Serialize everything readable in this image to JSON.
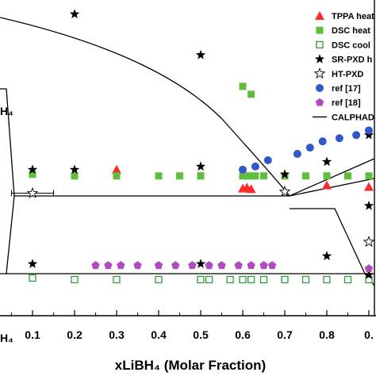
{
  "chart_data": {
    "type": "scatter",
    "title": "",
    "xlabel": "xLiBH₄ (Molar Fraction)",
    "ylabel": "",
    "left_label_fragment": "H₄",
    "bottom_left_fragment": "H₄",
    "x_tick_labels": [
      "0.1",
      "0.2",
      "0.3",
      "0.4",
      "0.5",
      "0.6",
      "0.7",
      "0.8",
      "0."
    ],
    "xlim": [
      0.0,
      0.9
    ],
    "ylim": [
      0,
      100
    ],
    "grid": false,
    "legend_position": "top-right",
    "series": [
      {
        "name": "TPPA heat",
        "marker": "triangle",
        "color": "#ff2a2a",
        "x": [
          0.3,
          0.6,
          0.61,
          0.62,
          0.8,
          0.9
        ],
        "y": [
          46.5,
          40.5,
          40.8,
          40.3,
          41.5,
          41.0
        ]
      },
      {
        "name": "DSC heat",
        "marker": "square-filled",
        "color": "#5fbf3c",
        "x": [
          0.1,
          0.2,
          0.3,
          0.4,
          0.45,
          0.5,
          0.6,
          0.61,
          0.62,
          0.65,
          0.7,
          0.75,
          0.8,
          0.85,
          0.9,
          0.5,
          0.6,
          0.62,
          0.61,
          0.63
        ],
        "y": [
          45.0,
          44.5,
          44.5,
          44.5,
          44.5,
          44.5,
          44.5,
          44.5,
          44.5,
          44.5,
          44.5,
          44.5,
          44.5,
          44.5,
          44.5,
          44.5,
          73.0,
          70.5,
          44.5,
          44.5
        ]
      },
      {
        "name": "DSC cool",
        "marker": "square-open",
        "color": "#2e9a3c",
        "x": [
          0.1,
          0.2,
          0.3,
          0.4,
          0.5,
          0.52,
          0.57,
          0.6,
          0.62,
          0.65,
          0.7,
          0.75,
          0.8,
          0.85,
          0.9
        ],
        "y": [
          12.0,
          11.5,
          11.5,
          11.5,
          11.5,
          11.5,
          11.5,
          11.5,
          11.5,
          11.5,
          11.5,
          11.5,
          11.5,
          11.5,
          11.5
        ]
      },
      {
        "name": "SR-PXD h",
        "marker": "star-filled",
        "color": "#000000",
        "x": [
          0.1,
          0.2,
          0.5,
          0.2,
          0.5,
          0.1,
          0.5,
          0.7,
          0.8,
          0.9,
          0.9,
          0.9,
          0.8
        ],
        "y": [
          46.5,
          46.5,
          47.5,
          96.0,
          83.0,
          16.5,
          16.5,
          45.0,
          49.0,
          57.5,
          35.0,
          13.0,
          19.0
        ]
      },
      {
        "name": "HT-PXD",
        "marker": "star-open",
        "color": "#000000",
        "x": [
          0.1,
          0.7,
          0.9
        ],
        "y": [
          39.0,
          39.5,
          23.5
        ]
      },
      {
        "name": "ref [17]",
        "marker": "circle",
        "color": "#2f58c8",
        "x": [
          0.6,
          0.63,
          0.66,
          0.73,
          0.76,
          0.79,
          0.83,
          0.87,
          0.9
        ],
        "y": [
          46.5,
          47.5,
          49.5,
          51.5,
          53.5,
          55.5,
          56.5,
          57.5,
          59.0
        ]
      },
      {
        "name": "ref [18]",
        "marker": "pentagon",
        "color": "#b24ac1",
        "x": [
          0.25,
          0.28,
          0.31,
          0.35,
          0.4,
          0.44,
          0.48,
          0.52,
          0.55,
          0.59,
          0.62,
          0.65,
          0.67,
          0.9
        ],
        "y": [
          16.0,
          16.0,
          16.0,
          16.0,
          16.0,
          16.0,
          16.0,
          16.0,
          16.0,
          16.0,
          16.0,
          16.0,
          16.0,
          15.0
        ]
      },
      {
        "name": "CALPHAD",
        "marker": "line",
        "color": "#000000"
      }
    ],
    "error_bar": {
      "x": 0.1,
      "y": 39.0,
      "xerr": 0.05
    }
  }
}
